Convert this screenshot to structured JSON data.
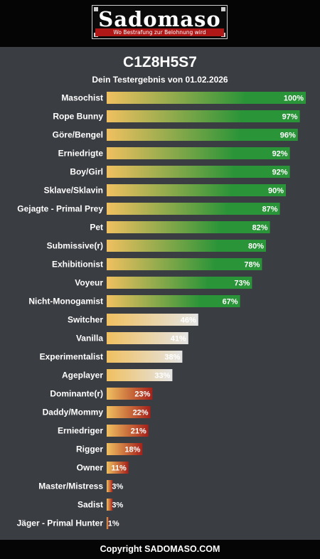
{
  "header": {
    "logo_text": "Sadomaso",
    "logo_tagline": "Wo Bestrafung zur Belohnung wird"
  },
  "result": {
    "code": "C1Z8H5S7",
    "subtitle": "Dein Testergebnis von 01.02.2026"
  },
  "footer": {
    "copyright": "Copyright SADOMASO.COM"
  },
  "colors": {
    "background": "#3a3d42",
    "bar_start": "#f0c060",
    "green": "#2a9438",
    "light": "#e4e4e4",
    "red": "#a5201a"
  },
  "chart_data": {
    "type": "bar",
    "orientation": "horizontal",
    "title": "C1Z8H5S7",
    "subtitle": "Dein Testergebnis von 01.02.2026",
    "xlim": [
      0,
      100
    ],
    "unit": "%",
    "grid": false,
    "legend": "none",
    "categories": [
      "Masochist",
      "Rope Bunny",
      "Göre/Bengel",
      "Erniedrigte",
      "Boy/Girl",
      "Sklave/Sklavin",
      "Gejagte - Primal Prey",
      "Pet",
      "Submissive(r)",
      "Exhibitionist",
      "Voyeur",
      "Nicht-Monogamist",
      "Switcher",
      "Vanilla",
      "Experimentalist",
      "Ageplayer",
      "Dominante(r)",
      "Daddy/Mommy",
      "Erniedriger",
      "Rigger",
      "Owner",
      "Master/Mistress",
      "Sadist",
      "Jäger - Primal Hunter"
    ],
    "values": [
      100,
      97,
      96,
      92,
      92,
      90,
      87,
      82,
      80,
      78,
      73,
      67,
      46,
      41,
      38,
      33,
      23,
      22,
      21,
      18,
      11,
      3,
      3,
      1
    ],
    "value_labels": [
      "100%",
      "97%",
      "96%",
      "92%",
      "92%",
      "90%",
      "87%",
      "82%",
      "80%",
      "78%",
      "73%",
      "67%",
      "46%",
      "41%",
      "38%",
      "33%",
      "23%",
      "22%",
      "21%",
      "18%",
      "11%",
      "3%",
      "3%",
      "1%"
    ],
    "color_groups": [
      "green",
      "green",
      "green",
      "green",
      "green",
      "green",
      "green",
      "green",
      "green",
      "green",
      "green",
      "green",
      "light",
      "light",
      "light",
      "light",
      "red",
      "red",
      "red",
      "red",
      "red",
      "red",
      "red",
      "red"
    ]
  }
}
